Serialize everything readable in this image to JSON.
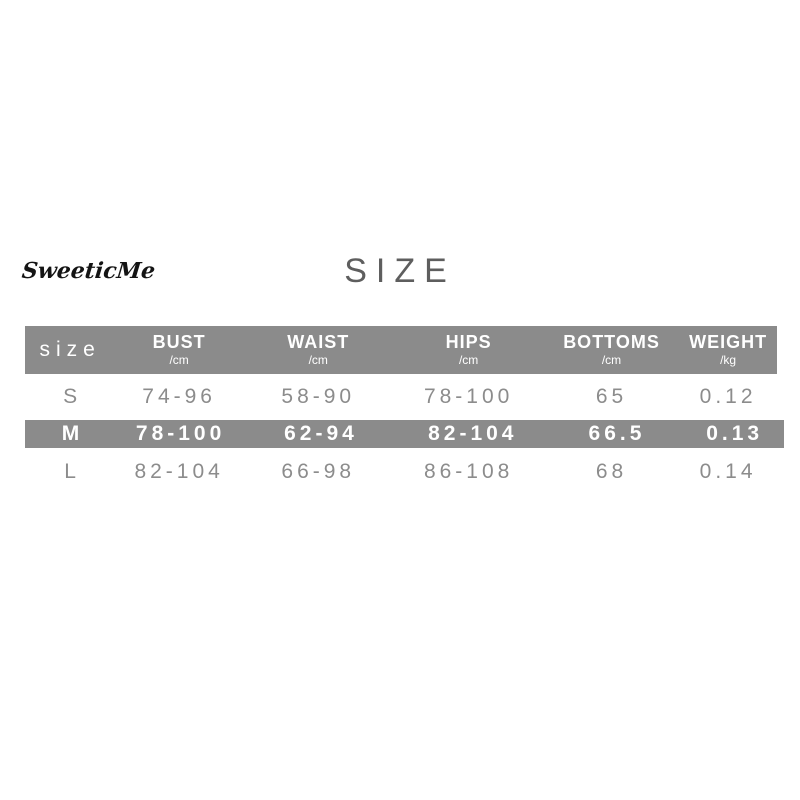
{
  "brand": "SweeticMe",
  "title": "SIZE",
  "table": {
    "size_header": "size",
    "columns": [
      {
        "label": "BUST",
        "unit": "/cm"
      },
      {
        "label": "WAIST",
        "unit": "/cm"
      },
      {
        "label": "HIPS",
        "unit": "/cm"
      },
      {
        "label": "BOTTOMS",
        "unit": "/cm"
      },
      {
        "label": "WEIGHT",
        "unit": "/kg"
      }
    ],
    "rows": [
      {
        "size": "S",
        "bust": "74-96",
        "waist": "58-90",
        "hips": "78-100",
        "bottoms": "65",
        "weight": "0.12",
        "highlighted": false
      },
      {
        "size": "M",
        "bust": "78-100",
        "waist": "62-94",
        "hips": "82-104",
        "bottoms": "66.5",
        "weight": "0.13",
        "highlighted": true
      },
      {
        "size": "L",
        "bust": "82-104",
        "waist": "66-98",
        "hips": "86-108",
        "bottoms": "68",
        "weight": "0.14",
        "highlighted": false
      }
    ]
  },
  "colors": {
    "band_gray": "#8b8b8b",
    "body_text_gray": "#8c8c8c",
    "title_gray": "#5e5e5e",
    "brand_black": "#141414",
    "background": "#ffffff"
  }
}
